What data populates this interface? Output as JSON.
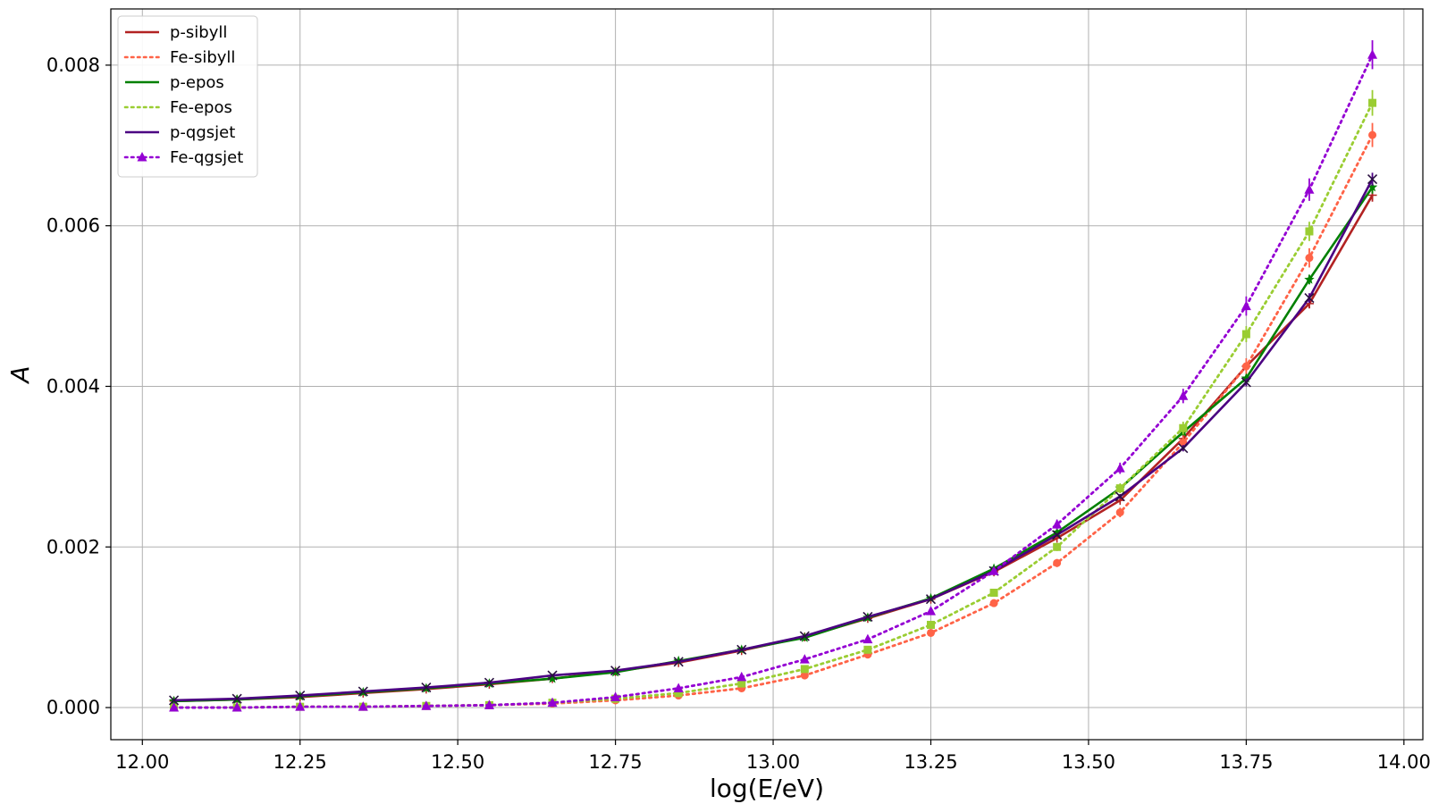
{
  "chart_data": {
    "type": "line",
    "xlabel": "log(E/eV)",
    "ylabel": "A",
    "xlim": [
      11.95,
      14.03
    ],
    "ylim": [
      -0.0004,
      0.0087
    ],
    "xticks": [
      12.0,
      12.25,
      12.5,
      12.75,
      13.0,
      13.25,
      13.5,
      13.75,
      14.0
    ],
    "xtick_labels": [
      "12.00",
      "12.25",
      "12.50",
      "12.75",
      "13.00",
      "13.25",
      "13.50",
      "13.75",
      "14.00"
    ],
    "yticks": [
      0.0,
      0.002,
      0.004,
      0.006,
      0.008
    ],
    "ytick_labels": [
      "0.000",
      "0.002",
      "0.004",
      "0.006",
      "0.008"
    ],
    "grid": true,
    "legend_position": "top-left",
    "x": [
      12.05,
      12.15,
      12.25,
      12.35,
      12.45,
      12.55,
      12.65,
      12.75,
      12.85,
      12.95,
      13.05,
      13.15,
      13.25,
      13.35,
      13.45,
      13.55,
      13.65,
      13.75,
      13.85,
      13.95
    ],
    "series": [
      {
        "name": "p-sibyll",
        "color": "#b22222",
        "linestyle": "solid",
        "marker": "plus",
        "values": [
          8e-05,
          0.0001,
          0.00013,
          0.00018,
          0.00023,
          0.00029,
          0.00036,
          0.00045,
          0.00056,
          0.00071,
          0.00088,
          0.00111,
          0.00135,
          0.00169,
          0.00211,
          0.00258,
          0.00335,
          0.00425,
          0.00503,
          0.00638
        ],
        "errors": [
          0,
          0,
          0,
          0,
          0,
          0,
          0,
          0,
          0,
          0,
          0,
          0,
          0,
          0,
          2e-05,
          3e-05,
          4e-05,
          5e-05,
          6e-05,
          8e-05
        ]
      },
      {
        "name": "Fe-sibyll",
        "color": "#ff6347",
        "linestyle": "dotted",
        "marker": "circle",
        "values": [
          0.0,
          0.0,
          1e-05,
          1e-05,
          2e-05,
          3e-05,
          5e-05,
          9e-05,
          0.00015,
          0.00024,
          0.0004,
          0.00066,
          0.00093,
          0.0013,
          0.0018,
          0.00243,
          0.0033,
          0.00425,
          0.0056,
          0.00713
        ],
        "errors": [
          0,
          0,
          0,
          0,
          0,
          0,
          0,
          0,
          0,
          0,
          2e-05,
          2e-05,
          3e-05,
          4e-05,
          5e-05,
          6e-05,
          8e-05,
          0.0001,
          0.00012,
          0.00015
        ]
      },
      {
        "name": "p-epos",
        "color": "#008000",
        "linestyle": "solid",
        "marker": "star",
        "values": [
          8e-05,
          0.0001,
          0.00014,
          0.00019,
          0.00024,
          0.0003,
          0.00036,
          0.00044,
          0.00058,
          0.00072,
          0.00087,
          0.00112,
          0.00136,
          0.00173,
          0.00218,
          0.00273,
          0.00343,
          0.0041,
          0.00533,
          0.00648
        ],
        "errors": [
          0,
          0,
          0,
          0,
          0,
          0,
          0,
          0,
          0,
          0,
          0,
          0,
          0,
          0,
          2e-05,
          3e-05,
          4e-05,
          5e-05,
          6e-05,
          8e-05
        ]
      },
      {
        "name": "Fe-epos",
        "color": "#9acd32",
        "linestyle": "dotted",
        "marker": "square",
        "values": [
          0.0,
          0.0,
          1e-05,
          1e-05,
          2e-05,
          3e-05,
          6e-05,
          0.00011,
          0.00018,
          0.0003,
          0.00048,
          0.00072,
          0.00103,
          0.00143,
          0.002,
          0.00273,
          0.00348,
          0.00465,
          0.00593,
          0.00753
        ],
        "errors": [
          0,
          0,
          0,
          0,
          0,
          0,
          0,
          0,
          0,
          0,
          2e-05,
          2e-05,
          3e-05,
          4e-05,
          5e-05,
          6e-05,
          8e-05,
          0.0001,
          0.00012,
          0.00016
        ]
      },
      {
        "name": "p-qgsjet",
        "color": "#4b0082",
        "linestyle": "solid",
        "marker": "x",
        "values": [
          9e-05,
          0.00011,
          0.00015,
          0.0002,
          0.00025,
          0.00031,
          0.0004,
          0.00046,
          0.00057,
          0.00072,
          0.00089,
          0.00113,
          0.00135,
          0.0017,
          0.00215,
          0.00263,
          0.00323,
          0.00405,
          0.0051,
          0.00658
        ],
        "errors": [
          0,
          0,
          0,
          0,
          0,
          0,
          0,
          0,
          0,
          0,
          0,
          0,
          0,
          0,
          2e-05,
          3e-05,
          4e-05,
          5e-05,
          6e-05,
          8e-05
        ]
      },
      {
        "name": "Fe-qgsjet",
        "color": "#9400d3",
        "linestyle": "dotted",
        "marker": "triangle",
        "values": [
          0.0,
          0.0,
          1e-05,
          1e-05,
          2e-05,
          3e-05,
          6e-05,
          0.00013,
          0.00024,
          0.00038,
          0.0006,
          0.00085,
          0.0012,
          0.0017,
          0.00228,
          0.00298,
          0.00388,
          0.005,
          0.00645,
          0.00813
        ],
        "errors": [
          0,
          0,
          0,
          0,
          0,
          0,
          0,
          0,
          0,
          0,
          2e-05,
          3e-05,
          3e-05,
          4e-05,
          6e-05,
          7e-05,
          9e-05,
          0.00012,
          0.00014,
          0.00018
        ]
      }
    ]
  }
}
